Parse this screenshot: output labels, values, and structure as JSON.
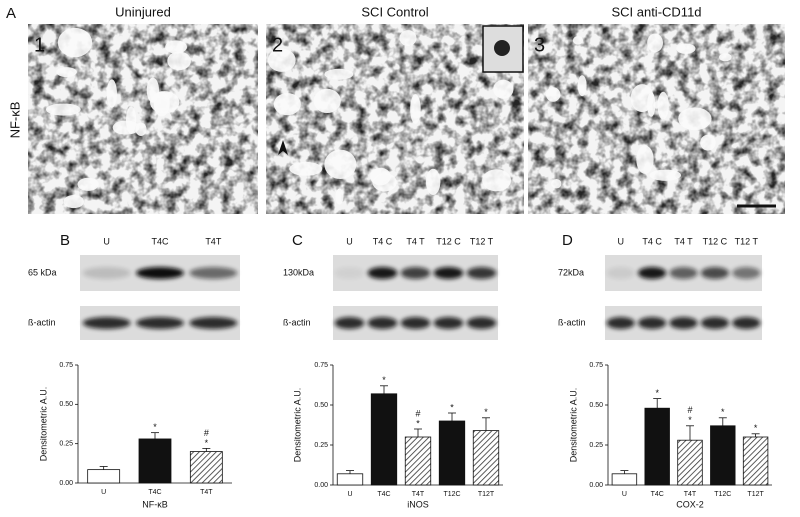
{
  "micrographs": {
    "label": "A",
    "row_label": "NF-κB",
    "images": [
      {
        "number": "1",
        "title": "Uninjured"
      },
      {
        "number": "2",
        "title": "SCI Control"
      },
      {
        "number": "3",
        "title": "SCI anti-CD11d"
      }
    ]
  },
  "blots": [
    {
      "label": "B",
      "lanes": [
        "U",
        "T4C",
        "T4T"
      ],
      "rows": [
        "65 kDa",
        "ß-actin"
      ]
    },
    {
      "label": "C",
      "lanes": [
        "U",
        "T4 C",
        "T4 T",
        "T12 C",
        "T12 T"
      ],
      "rows": [
        "130kDa",
        "ß-actin"
      ]
    },
    {
      "label": "D",
      "lanes": [
        "U",
        "T4 C",
        "T4 T",
        "T12 C",
        "T12 T"
      ],
      "rows": [
        "72kDa",
        "ß-actin"
      ]
    }
  ],
  "chart_data": [
    {
      "type": "bar",
      "x_label": "NF-κB",
      "y_label": "Densitometric A.U.",
      "categories": [
        "U",
        "T4C",
        "T4T"
      ],
      "values": [
        0.085,
        0.28,
        0.2
      ],
      "errors": [
        0.02,
        0.04,
        0.02
      ],
      "fills": [
        "white",
        "black",
        "hatched"
      ],
      "significance": [
        null,
        [
          "*"
        ],
        [
          "#",
          "*"
        ]
      ],
      "ylim": [
        0,
        0.75
      ],
      "yticks": [
        {
          "value": 0,
          "label": "0.00"
        },
        0.25,
        {
          "value": 0.5,
          "label": "0.50"
        },
        0.75
      ]
    },
    {
      "type": "bar",
      "x_label": "iNOS",
      "y_label": "Densitometric A.U.",
      "categories": [
        "U",
        "T4C",
        "T4T",
        "T12C",
        "T12T"
      ],
      "values": [
        0.07,
        0.57,
        0.3,
        0.4,
        0.34
      ],
      "errors": [
        0.02,
        0.05,
        0.05,
        0.05,
        0.08
      ],
      "fills": [
        "white",
        "black",
        "hatched",
        "black",
        "hatched"
      ],
      "significance": [
        null,
        [
          "*"
        ],
        [
          "#",
          "*"
        ],
        [
          "*"
        ],
        [
          "*"
        ]
      ],
      "ylim": [
        0,
        0.75
      ],
      "yticks": [
        {
          "value": 0,
          "label": "0.00"
        },
        0.25,
        {
          "value": 0.5,
          "label": "0.50"
        },
        0.75
      ]
    },
    {
      "type": "bar",
      "x_label": "COX-2",
      "y_label": "Densitometric A.U.",
      "categories": [
        "U",
        "T4C",
        "T4T",
        "T12C",
        "T12T"
      ],
      "values": [
        0.07,
        0.48,
        0.28,
        0.37,
        0.3
      ],
      "errors": [
        0.02,
        0.06,
        0.09,
        0.05,
        0.02
      ],
      "fills": [
        "white",
        "black",
        "hatched",
        "black",
        "hatched"
      ],
      "significance": [
        null,
        [
          "*"
        ],
        [
          "#",
          "*"
        ],
        [
          "*"
        ],
        [
          "*"
        ]
      ],
      "ylim": [
        0,
        0.75
      ],
      "yticks": [
        {
          "value": 0,
          "label": "0.00"
        },
        0.25,
        {
          "value": 0.5,
          "label": "0.50"
        },
        0.75
      ]
    }
  ]
}
